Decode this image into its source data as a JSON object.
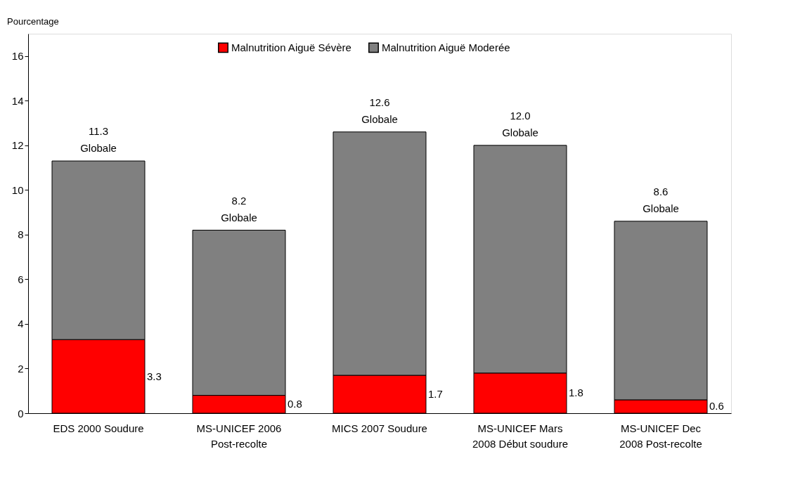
{
  "chart_data": {
    "type": "bar",
    "stacked": true,
    "ylabel": "Pourcentage",
    "categories": [
      "EDS 2000 Soudure",
      "MS-UNICEF 2006\nPost-recolte",
      "MICS 2007 Soudure",
      "MS-UNICEF Mars\n2008 Début soudure",
      "MS-UNICEF Dec\n2008 Post-recolte"
    ],
    "series": [
      {
        "name": "Malnutrition Aiguë Sévère",
        "color": "#ff0000",
        "values": [
          3.3,
          0.8,
          1.7,
          1.8,
          0.6
        ],
        "value_labels": [
          "3.3",
          "0.8",
          "1.7",
          "1.8",
          "0.6"
        ]
      },
      {
        "name": "Malnutrition Aiguë Moderée",
        "color": "#808080",
        "values": [
          8.0,
          7.4,
          10.9,
          10.2,
          8.0
        ]
      }
    ],
    "totals": [
      "11.3\nGlobale",
      "8.2\nGlobale",
      "12.6\nGlobale",
      "12.0\nGlobale",
      "8.6\nGlobale"
    ],
    "ylim": [
      0,
      17
    ],
    "yticks": [
      0,
      2,
      4,
      6,
      8,
      10,
      12,
      14,
      16
    ],
    "grid": false,
    "legend": "top"
  }
}
